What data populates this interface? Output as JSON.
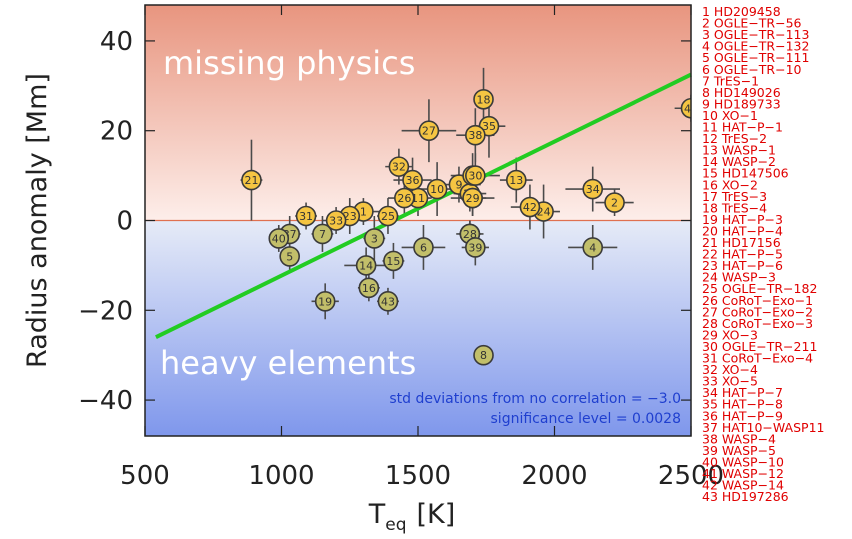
{
  "chart_data": {
    "type": "scatter",
    "xlabel": "T",
    "xlabel_sub": "eq",
    "xlabel_unit": "[K]",
    "ylabel": "Radius anomaly [Mm]",
    "xlim": [
      500,
      2500
    ],
    "ylim": [
      -48,
      48
    ],
    "xticks": [
      500,
      1000,
      1500,
      2000,
      2500
    ],
    "yticks": [
      -40,
      -20,
      0,
      20,
      40
    ],
    "region_labels": {
      "upper": "missing physics",
      "lower": "heavy elements"
    },
    "annotations": [
      "std deviations from no correlation = −3.0",
      "significance level = 0.0028"
    ],
    "zero_line": 0,
    "fit_line": {
      "x": [
        540,
        2500
      ],
      "y": [
        -26,
        32.5
      ],
      "color": "#22cc22"
    },
    "colors": {
      "positive_point": "#f5c542",
      "negative_point": "#c2bf6a",
      "legend_text": "#e00000"
    },
    "points": [
      {
        "id": 1,
        "x": 1300,
        "y": 2,
        "xerr": 60,
        "yerr": 3
      },
      {
        "id": 2,
        "x": 2220,
        "y": 4,
        "xerr": 70,
        "yerr": 3
      },
      {
        "id": 3,
        "x": 1340,
        "y": -4,
        "xerr": 40,
        "yerr": 5
      },
      {
        "id": 4,
        "x": 2140,
        "y": -6,
        "xerr": 90,
        "yerr": 5
      },
      {
        "id": 5,
        "x": 1030,
        "y": -8,
        "xerr": 30,
        "yerr": 3
      },
      {
        "id": 6,
        "x": 1520,
        "y": -6,
        "xerr": 80,
        "yerr": 5
      },
      {
        "id": 7,
        "x": 1150,
        "y": -3,
        "xerr": 40,
        "yerr": 4
      },
      {
        "id": 8,
        "x": 1740,
        "y": -30,
        "xerr": 10,
        "yerr": 1
      },
      {
        "id": 9,
        "x": 1650,
        "y": 8,
        "xerr": 80,
        "yerr": 4
      },
      {
        "id": 10,
        "x": 1570,
        "y": 7,
        "xerr": 60,
        "yerr": 6
      },
      {
        "id": 11,
        "x": 1500,
        "y": 5,
        "xerr": 50,
        "yerr": 4
      },
      {
        "id": 12,
        "x": 1690,
        "y": 6,
        "xerr": 60,
        "yerr": 4
      },
      {
        "id": 13,
        "x": 1860,
        "y": 9,
        "xerr": 60,
        "yerr": 5
      },
      {
        "id": 14,
        "x": 1310,
        "y": -10,
        "xerr": 80,
        "yerr": 4
      },
      {
        "id": 15,
        "x": 1410,
        "y": -9,
        "xerr": 40,
        "yerr": 4
      },
      {
        "id": 16,
        "x": 1320,
        "y": -15,
        "xerr": 40,
        "yerr": 3
      },
      {
        "id": 17,
        "x": 1700,
        "y": 10,
        "xerr": 60,
        "yerr": 5
      },
      {
        "id": 18,
        "x": 1740,
        "y": 27,
        "xerr": 30,
        "yerr": 7
      },
      {
        "id": 19,
        "x": 1160,
        "y": -18,
        "xerr": 50,
        "yerr": 4
      },
      {
        "id": 20,
        "x": 1700,
        "y": 5,
        "xerr": 50,
        "yerr": 4
      },
      {
        "id": 21,
        "x": 890,
        "y": 9,
        "xerr": 40,
        "yerr": 9
      },
      {
        "id": 22,
        "x": 1690,
        "y": -3,
        "xerr": 40,
        "yerr": 3
      },
      {
        "id": 23,
        "x": 1250,
        "y": 1,
        "xerr": 60,
        "yerr": 4
      },
      {
        "id": 24,
        "x": 1960,
        "y": 2,
        "xerr": 60,
        "yerr": 6
      },
      {
        "id": 25,
        "x": 1390,
        "y": 1,
        "xerr": 40,
        "yerr": 4
      },
      {
        "id": 26,
        "x": 1450,
        "y": 5,
        "xerr": 60,
        "yerr": 4
      },
      {
        "id": 27,
        "x": 1540,
        "y": 20,
        "xerr": 100,
        "yerr": 7
      },
      {
        "id": 28,
        "x": 1690,
        "y": -3,
        "xerr": 50,
        "yerr": 3
      },
      {
        "id": 29,
        "x": 1700,
        "y": 5,
        "xerr": 80,
        "yerr": 4
      },
      {
        "id": 30,
        "x": 1710,
        "y": 10,
        "xerr": 90,
        "yerr": 5
      },
      {
        "id": 31,
        "x": 1090,
        "y": 1,
        "xerr": 40,
        "yerr": 3
      },
      {
        "id": 32,
        "x": 1430,
        "y": 12,
        "xerr": 50,
        "yerr": 4
      },
      {
        "id": 33,
        "x": 1200,
        "y": 0,
        "xerr": 50,
        "yerr": 3
      },
      {
        "id": 34,
        "x": 2140,
        "y": 7,
        "xerr": 100,
        "yerr": 5
      },
      {
        "id": 35,
        "x": 1760,
        "y": 21,
        "xerr": 60,
        "yerr": 7
      },
      {
        "id": 36,
        "x": 1480,
        "y": 9,
        "xerr": 70,
        "yerr": 5
      },
      {
        "id": 37,
        "x": 1030,
        "y": -3,
        "xerr": 40,
        "yerr": 4
      },
      {
        "id": 38,
        "x": 1710,
        "y": 19,
        "xerr": 70,
        "yerr": 6
      },
      {
        "id": 39,
        "x": 1710,
        "y": -6,
        "xerr": 50,
        "yerr": 4
      },
      {
        "id": 40,
        "x": 990,
        "y": -4,
        "xerr": 30,
        "yerr": 3
      },
      {
        "id": 41,
        "x": 2500,
        "y": 25,
        "xerr": 60,
        "yerr": 3
      },
      {
        "id": 42,
        "x": 1910,
        "y": 3,
        "xerr": 70,
        "yerr": 5
      },
      {
        "id": 43,
        "x": 1390,
        "y": -18,
        "xerr": 40,
        "yerr": 3
      }
    ],
    "legend": [
      "1 HD209458",
      "2 OGLE−TR−56",
      "3 OGLE−TR−113",
      "4 OGLE−TR−132",
      "5 OGLE−TR−111",
      "6 OGLE−TR−10",
      "7 TrES−1",
      "8 HD149026",
      "9 HD189733",
      "10 XO−1",
      "11 HAT−P−1",
      "12 TrES−2",
      "13 WASP−1",
      "14 WASP−2",
      "15 HD147506",
      "16 XO−2",
      "17 TrES−3",
      "18 TrES−4",
      "19 HAT−P−3",
      "20 HAT−P−4",
      "21 HD17156",
      "22 HAT−P−5",
      "23 HAT−P−6",
      "24 WASP−3",
      "25 OGLE−TR−182",
      "26 CoRoT−Exo−1",
      "27 CoRoT−Exo−2",
      "28 CoRoT−Exo−3",
      "29 XO−3",
      "30 OGLE−TR−211",
      "31 CoRoT−Exo−4",
      "32 XO−4",
      "33 XO−5",
      "34 HAT−P−7",
      "35 HAT−P−8",
      "36 HAT−P−9",
      "37 HAT10−WASP11",
      "38 WASP−4",
      "39 WASP−5",
      "40 WASP−10",
      "41 WASP−12",
      "42 WASP−14",
      "43 HD197286"
    ]
  }
}
